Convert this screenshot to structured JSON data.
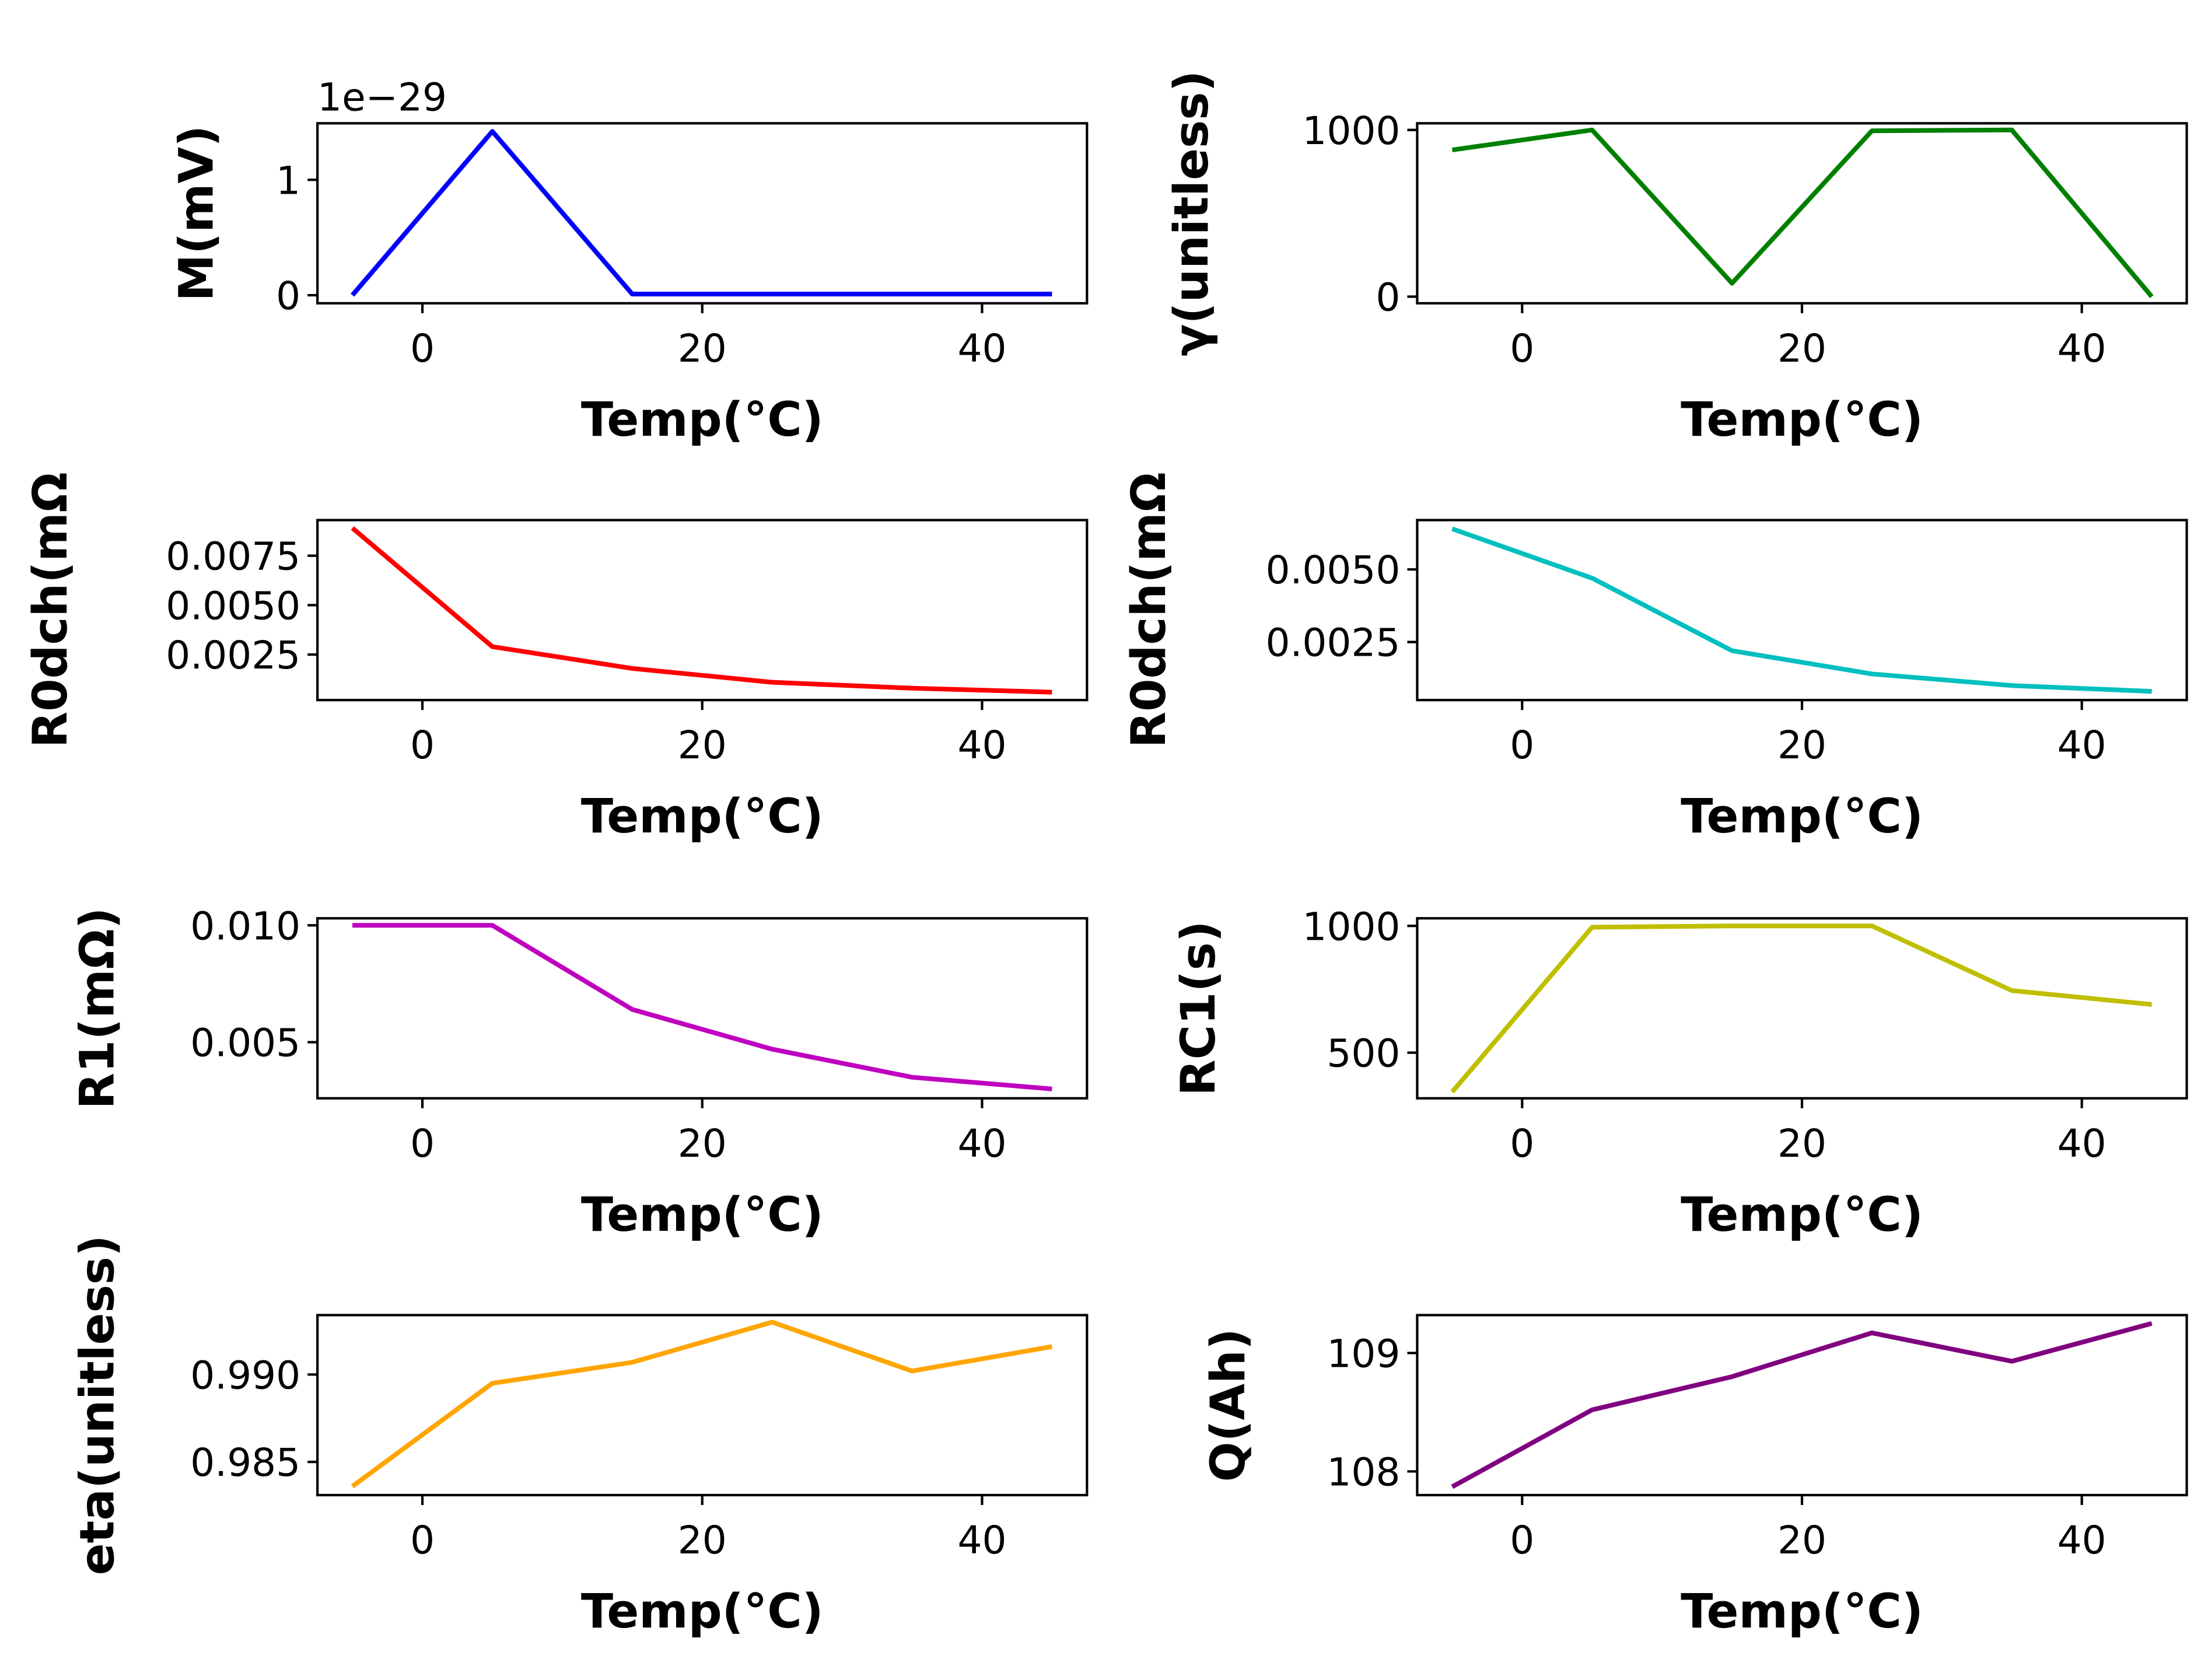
{
  "chart_data": [
    {
      "type": "line",
      "xlabel": "Temp(°C)",
      "ylabel": "M(mV)",
      "offset_text": "1e−29",
      "x": [
        -5,
        5,
        15,
        25,
        35,
        45
      ],
      "y": [
        0,
        1.42,
        0.01,
        0.01,
        0.01,
        0.01
      ],
      "xlim": [
        -7.5,
        47.5
      ],
      "ylim": [
        -0.07,
        1.49
      ],
      "xticks": [
        0,
        20,
        40
      ],
      "xtick_labels": [
        "0",
        "20",
        "40"
      ],
      "yticks": [
        0,
        1
      ],
      "ytick_labels": [
        "0",
        "1"
      ],
      "color": "#0000ff"
    },
    {
      "type": "line",
      "xlabel": "Temp(°C)",
      "ylabel": "γ(unitless)",
      "x": [
        -5,
        5,
        15,
        25,
        35,
        45
      ],
      "y": [
        880,
        1000,
        80,
        995,
        1000,
        0
      ],
      "xlim": [
        -7.5,
        47.5
      ],
      "ylim": [
        -40,
        1040
      ],
      "xticks": [
        0,
        20,
        40
      ],
      "xtick_labels": [
        "0",
        "20",
        "40"
      ],
      "yticks": [
        0,
        1000
      ],
      "ytick_labels": [
        "0",
        "1000"
      ],
      "color": "#008000"
    },
    {
      "type": "line",
      "xlabel": "Temp(°C)",
      "ylabel": "R0dch(mΩ",
      "x": [
        -5,
        5,
        15,
        25,
        35,
        45
      ],
      "y": [
        0.0089,
        0.0029,
        0.0018,
        0.0011,
        0.0008,
        0.0006
      ],
      "xlim": [
        -7.5,
        47.5
      ],
      "ylim": [
        0.0002,
        0.0093
      ],
      "xticks": [
        0,
        20,
        40
      ],
      "xtick_labels": [
        "0",
        "20",
        "40"
      ],
      "yticks": [
        0.0025,
        0.005,
        0.0075
      ],
      "ytick_labels": [
        "0.0025",
        "0.0050",
        "0.0075"
      ],
      "color": "#ff0000"
    },
    {
      "type": "line",
      "xlabel": "Temp(°C)",
      "ylabel": "R0dch(mΩ",
      "x": [
        -5,
        5,
        15,
        25,
        35,
        45
      ],
      "y": [
        0.0064,
        0.0047,
        0.0022,
        0.0014,
        0.001,
        0.0008
      ],
      "xlim": [
        -7.5,
        47.5
      ],
      "ylim": [
        0.0005,
        0.0067
      ],
      "xticks": [
        0,
        20,
        40
      ],
      "xtick_labels": [
        "0",
        "20",
        "40"
      ],
      "yticks": [
        0.0025,
        0.005
      ],
      "ytick_labels": [
        "0.0025",
        "0.0050"
      ],
      "color": "#00bfbf"
    },
    {
      "type": "line",
      "xlabel": "Temp(°C)",
      "ylabel": "R1(mΩ)",
      "x": [
        -5,
        5,
        15,
        25,
        35,
        45
      ],
      "y": [
        0.01,
        0.01,
        0.0064,
        0.0047,
        0.0035,
        0.003
      ],
      "xlim": [
        -7.5,
        47.5
      ],
      "ylim": [
        0.0026,
        0.0103
      ],
      "xticks": [
        0,
        20,
        40
      ],
      "xtick_labels": [
        "0",
        "20",
        "40"
      ],
      "yticks": [
        0.005,
        0.01
      ],
      "ytick_labels": [
        "0.005",
        "0.010"
      ],
      "color": "#bf00bf"
    },
    {
      "type": "line",
      "xlabel": "Temp(°C)",
      "ylabel": "RC1(s)",
      "x": [
        -5,
        5,
        15,
        25,
        35,
        45
      ],
      "y": [
        345,
        995,
        1000,
        1000,
        745,
        690
      ],
      "xlim": [
        -7.5,
        47.5
      ],
      "ylim": [
        320,
        1030
      ],
      "xticks": [
        0,
        20,
        40
      ],
      "xtick_labels": [
        "0",
        "20",
        "40"
      ],
      "yticks": [
        500,
        1000
      ],
      "ytick_labels": [
        "500",
        "1000"
      ],
      "color": "#bfbf00"
    },
    {
      "type": "line",
      "xlabel": "Temp(°C)",
      "ylabel": "eta(unitless)",
      "x": [
        -5,
        5,
        15,
        25,
        35,
        45
      ],
      "y": [
        0.9836,
        0.9895,
        0.9907,
        0.993,
        0.9902,
        0.9916
      ],
      "xlim": [
        -7.5,
        47.5
      ],
      "ylim": [
        0.9831,
        0.9934
      ],
      "xticks": [
        0,
        20,
        40
      ],
      "xtick_labels": [
        "0",
        "20",
        "40"
      ],
      "yticks": [
        0.985,
        0.99
      ],
      "ytick_labels": [
        "0.985",
        "0.990"
      ],
      "color": "#ffa500"
    },
    {
      "type": "line",
      "xlabel": "Temp(°C)",
      "ylabel": "Q(Ah)",
      "x": [
        -5,
        5,
        15,
        25,
        35,
        45
      ],
      "y": [
        107.87,
        108.52,
        108.8,
        109.17,
        108.93,
        109.25
      ],
      "xlim": [
        -7.5,
        47.5
      ],
      "ylim": [
        107.8,
        109.32
      ],
      "xticks": [
        0,
        20,
        40
      ],
      "xtick_labels": [
        "0",
        "20",
        "40"
      ],
      "yticks": [
        108,
        109
      ],
      "ytick_labels": [
        "108",
        "109"
      ],
      "color": "#800080"
    }
  ]
}
